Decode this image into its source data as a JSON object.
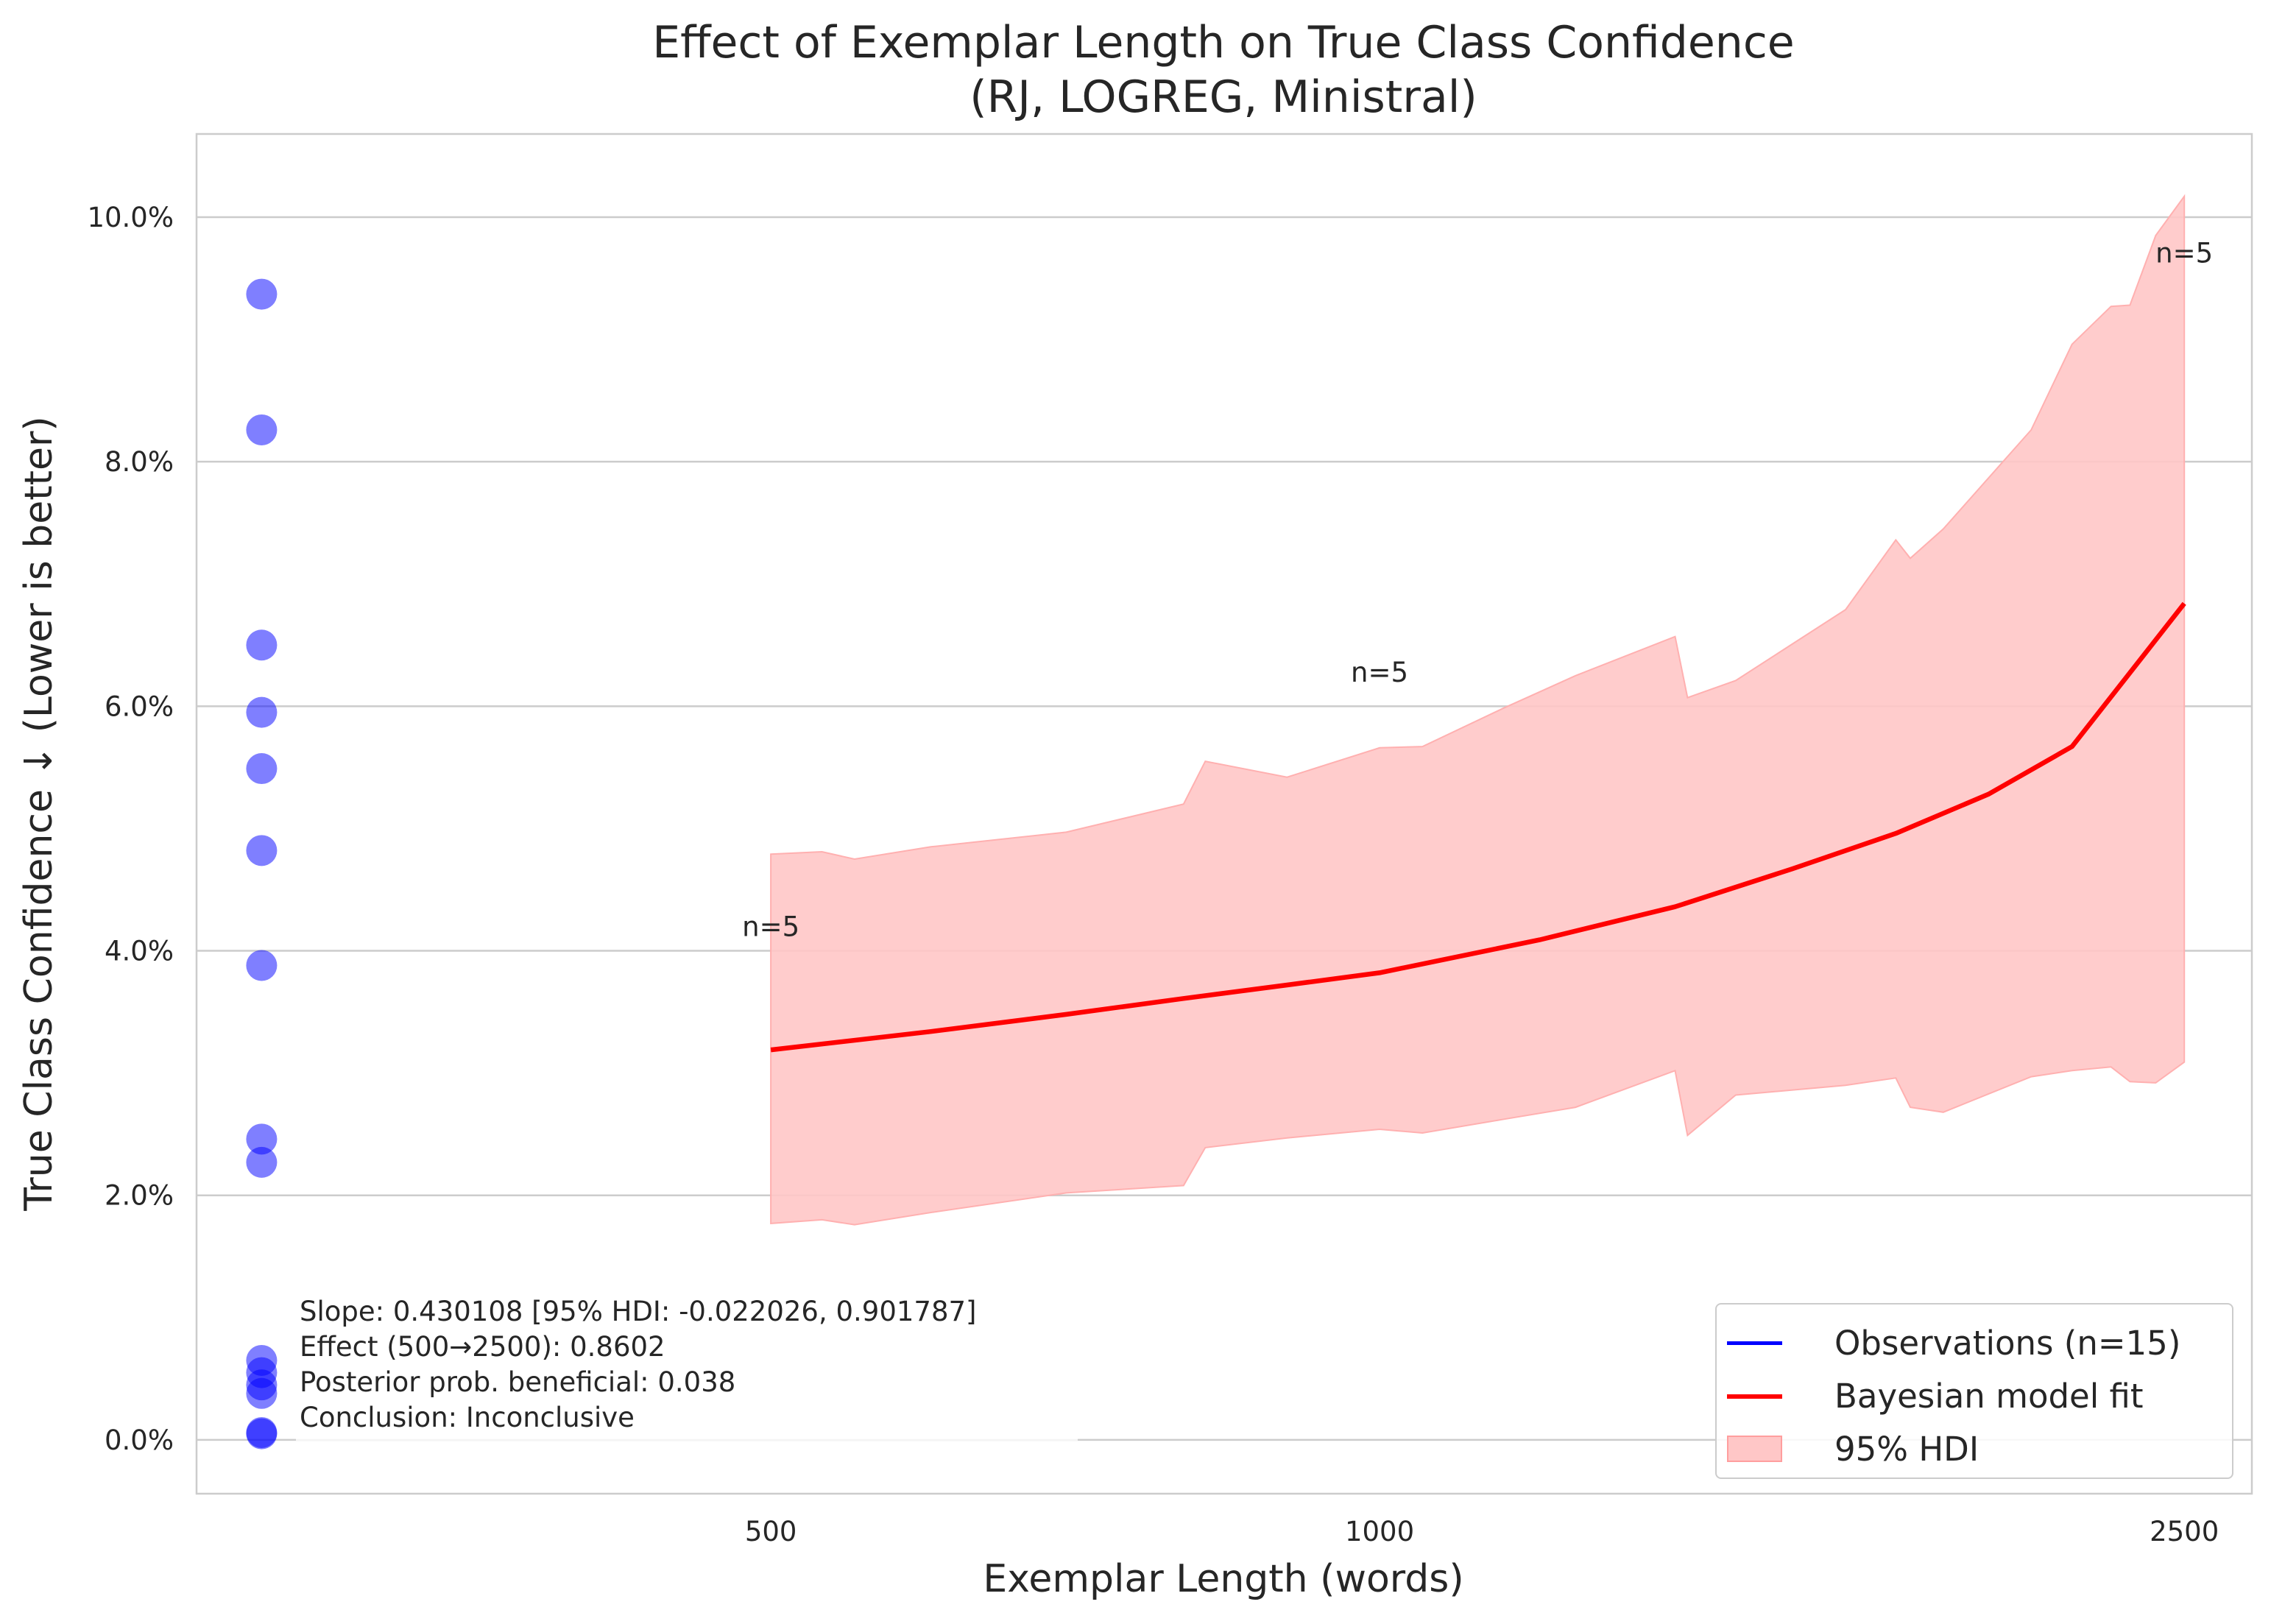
{
  "colors": {
    "observations": "#0000ff",
    "fit_line": "#ff0000",
    "hdi_fill": "#ffc7c7",
    "grid": "#cccccc"
  },
  "chart_data": {
    "type": "line",
    "title_line1": "Effect of Exemplar Length on True Class Confidence",
    "title_line2": "(RJ, LOGREG, Ministral)",
    "xlabel": "Exemplar Length (words)",
    "ylabel": "True Class Confidence ↓ (Lower is better)",
    "x_scale": "log",
    "xlim": [
      260,
      2700
    ],
    "ylim": [
      -0.0044,
      0.1068
    ],
    "x_ticks": [
      {
        "value": 500,
        "label": "500"
      },
      {
        "value": 1000,
        "label": "1000"
      },
      {
        "value": 2500,
        "label": "2500"
      }
    ],
    "y_ticks": [
      {
        "value": 0.0,
        "label": "0.0%"
      },
      {
        "value": 0.02,
        "label": "2.0%"
      },
      {
        "value": 0.04,
        "label": "4.0%"
      },
      {
        "value": 0.06,
        "label": "6.0%"
      },
      {
        "value": 0.08,
        "label": "8.0%"
      },
      {
        "value": 0.1,
        "label": "10.0%"
      }
    ],
    "grid": "horizontal",
    "legend_position": "lower right",
    "observations": {
      "x": [
        280,
        280,
        280,
        280,
        280,
        280,
        280,
        280,
        280,
        280,
        280,
        280,
        280,
        280,
        280
      ],
      "y": [
        0.0937,
        0.0826,
        0.065,
        0.0595,
        0.0549,
        0.0482,
        0.0388,
        0.0246,
        0.0227,
        0.0065,
        0.0055,
        0.0045,
        0.0038,
        0.0006,
        0.0005
      ]
    },
    "fit_line": {
      "x": [
        500,
        600,
        700,
        800,
        900,
        1000,
        1200,
        1400,
        1600,
        1800,
        2000,
        2200,
        2500
      ],
      "y": [
        0.0319,
        0.0334,
        0.0348,
        0.0361,
        0.0372,
        0.0382,
        0.0409,
        0.0436,
        0.0467,
        0.0496,
        0.0528,
        0.0567,
        0.0684
      ]
    },
    "hdi": {
      "x": [
        500,
        530,
        550,
        600,
        700,
        800,
        820,
        900,
        1000,
        1050,
        1150,
        1250,
        1400,
        1420,
        1500,
        1700,
        1800,
        1830,
        1900,
        2100,
        2200,
        2300,
        2350,
        2420,
        2500
      ],
      "upper": [
        0.0479,
        0.0481,
        0.0475,
        0.0485,
        0.0497,
        0.052,
        0.0555,
        0.0542,
        0.0566,
        0.0567,
        0.0598,
        0.0625,
        0.0657,
        0.0607,
        0.0621,
        0.0679,
        0.0736,
        0.0721,
        0.0745,
        0.0826,
        0.0896,
        0.0927,
        0.0928,
        0.0985,
        0.1017
      ],
      "lower": [
        0.0177,
        0.018,
        0.0176,
        0.0186,
        0.0202,
        0.0208,
        0.0239,
        0.0247,
        0.0254,
        0.0251,
        0.0262,
        0.0272,
        0.0302,
        0.0249,
        0.0282,
        0.029,
        0.0296,
        0.0272,
        0.0268,
        0.0297,
        0.0302,
        0.0305,
        0.0293,
        0.0292,
        0.0309
      ]
    },
    "n_labels": [
      {
        "text": "n=5",
        "x": 500,
        "y": 0.0412
      },
      {
        "text": "n=5",
        "x": 1000,
        "y": 0.062
      },
      {
        "text": "n=5",
        "x": 2500,
        "y": 0.0963
      }
    ],
    "annotation_lines": [
      "Slope: 0.430108 [95% HDI: -0.022026, 0.901787]",
      "Effect (500→2500): 0.8602",
      "Posterior prob. beneficial: 0.038",
      "Conclusion: Inconclusive"
    ],
    "legend": [
      {
        "label": "Observations (n=15)",
        "kind": "line",
        "color": "#0000ff"
      },
      {
        "label": "Bayesian model fit",
        "kind": "line",
        "color": "#ff0000"
      },
      {
        "label": "95% HDI",
        "kind": "patch",
        "color": "#ffc7c7"
      }
    ]
  }
}
